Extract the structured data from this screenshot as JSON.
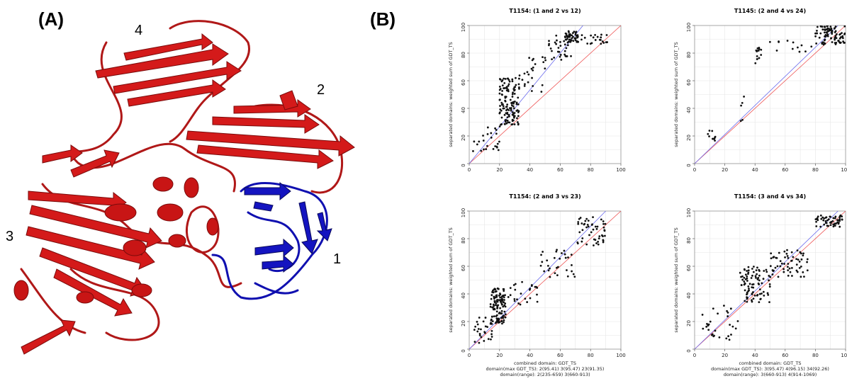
{
  "panels": {
    "a_label": "(A)",
    "b_label": "(B)"
  },
  "structure": {
    "domain_labels": [
      "1",
      "2",
      "3",
      "4"
    ],
    "colors": {
      "domain1": "#1010b0",
      "others": "#cc1515"
    }
  },
  "chart_data": [
    {
      "type": "scatter",
      "title": "T1154: (1 and 2 vs 12)",
      "xlabel": "",
      "ylabel": "separated domains: weighted sum of GDT_TS",
      "xlim": [
        0,
        100
      ],
      "ylim": [
        0,
        100
      ],
      "xticks": [
        "0",
        "20",
        "40",
        "60",
        "80",
        "100"
      ],
      "yticks": [
        "0",
        "20",
        "40",
        "60",
        "80",
        "100"
      ],
      "notes": [],
      "grid": true,
      "blue_line": [
        [
          0,
          0
        ],
        [
          75,
          100
        ]
      ],
      "red_line": [
        [
          0,
          0
        ],
        [
          100,
          100
        ]
      ],
      "clusters": [
        {
          "x": [
            2,
            22
          ],
          "y": [
            4,
            28
          ],
          "n": 25
        },
        {
          "x": [
            20,
            33
          ],
          "y": [
            28,
            62
          ],
          "n": 130
        },
        {
          "x": [
            33,
            52
          ],
          "y": [
            52,
            78
          ],
          "n": 25
        },
        {
          "x": [
            52,
            68
          ],
          "y": [
            75,
            93
          ],
          "n": 35
        },
        {
          "x": [
            63,
            72
          ],
          "y": [
            88,
            96
          ],
          "n": 40
        },
        {
          "x": [
            70,
            92
          ],
          "y": [
            86,
            94
          ],
          "n": 25
        }
      ]
    },
    {
      "type": "scatter",
      "title": "T1145: (2 and 4 vs 24)",
      "xlabel": "",
      "ylabel": "separated domains: weighted sum of GDT_TS",
      "xlim": [
        0,
        100
      ],
      "ylim": [
        0,
        100
      ],
      "xticks": [
        "0",
        "20",
        "40",
        "60",
        "80",
        "100"
      ],
      "yticks": [
        "0",
        "20",
        "40",
        "60",
        "80",
        "100"
      ],
      "notes": [],
      "grid": true,
      "blue_line": [
        [
          0,
          0
        ],
        [
          95,
          100
        ]
      ],
      "red_line": [
        [
          0,
          0
        ],
        [
          100,
          100
        ]
      ],
      "clusters": [
        {
          "x": [
            8,
            14
          ],
          "y": [
            14,
            24
          ],
          "n": 10
        },
        {
          "x": [
            29,
            33
          ],
          "y": [
            30,
            54
          ],
          "n": 5
        },
        {
          "x": [
            40,
            45
          ],
          "y": [
            72,
            85
          ],
          "n": 14
        },
        {
          "x": [
            46,
            78
          ],
          "y": [
            80,
            92
          ],
          "n": 12
        },
        {
          "x": [
            80,
            100
          ],
          "y": [
            86,
            100
          ],
          "n": 90
        }
      ]
    },
    {
      "type": "scatter",
      "title": "T1154: (2 and 3 vs 23)",
      "xlabel": "combined domain: GDT_TS",
      "ylabel": "separated domains: weighted sum of GDT_TS",
      "xlim": [
        0,
        100
      ],
      "ylim": [
        0,
        100
      ],
      "xticks": [
        "0",
        "20",
        "40",
        "60",
        "80",
        "100"
      ],
      "yticks": [
        "0",
        "20",
        "40",
        "60",
        "80",
        "100"
      ],
      "notes": [
        "domain(max GDT_TS): 2(95.41) 3(95.47) 23(91.35)",
        "domain(range): 2(235-659) 3(660-913)"
      ],
      "grid": true,
      "blue_line": [
        [
          0,
          0
        ],
        [
          90,
          100
        ]
      ],
      "red_line": [
        [
          0,
          0
        ],
        [
          100,
          100
        ]
      ],
      "clusters": [
        {
          "x": [
            3,
            15
          ],
          "y": [
            4,
            24
          ],
          "n": 25
        },
        {
          "x": [
            14,
            24
          ],
          "y": [
            18,
            44
          ],
          "n": 120
        },
        {
          "x": [
            24,
            45
          ],
          "y": [
            32,
            50
          ],
          "n": 25
        },
        {
          "x": [
            45,
            70
          ],
          "y": [
            52,
            72
          ],
          "n": 30
        },
        {
          "x": [
            70,
            90
          ],
          "y": [
            75,
            96
          ],
          "n": 50
        }
      ]
    },
    {
      "type": "scatter",
      "title": "T1154: (3 and 4 vs 34)",
      "xlabel": "combined domain: GDT_TS",
      "ylabel": "separated domains: weighted sum of GDT_TS",
      "xlim": [
        0,
        100
      ],
      "ylim": [
        0,
        100
      ],
      "xticks": [
        "0",
        "20",
        "40",
        "60",
        "80",
        "100"
      ],
      "yticks": [
        "0",
        "20",
        "40",
        "60",
        "80",
        "100"
      ],
      "notes": [
        "domain(max GDT_TS): 3(95.47) 4(96.15) 34(92.26)",
        "domain(range): 3(660-913) 4(914-1069)"
      ],
      "grid": true,
      "blue_line": [
        [
          0,
          0
        ],
        [
          95,
          100
        ]
      ],
      "red_line": [
        [
          0,
          0
        ],
        [
          100,
          100
        ]
      ],
      "clusters": [
        {
          "x": [
            5,
            30
          ],
          "y": [
            6,
            34
          ],
          "n": 30
        },
        {
          "x": [
            30,
            50
          ],
          "y": [
            34,
            60
          ],
          "n": 90
        },
        {
          "x": [
            50,
            75
          ],
          "y": [
            52,
            72
          ],
          "n": 60
        },
        {
          "x": [
            80,
            98
          ],
          "y": [
            88,
            97
          ],
          "n": 55
        }
      ]
    }
  ]
}
